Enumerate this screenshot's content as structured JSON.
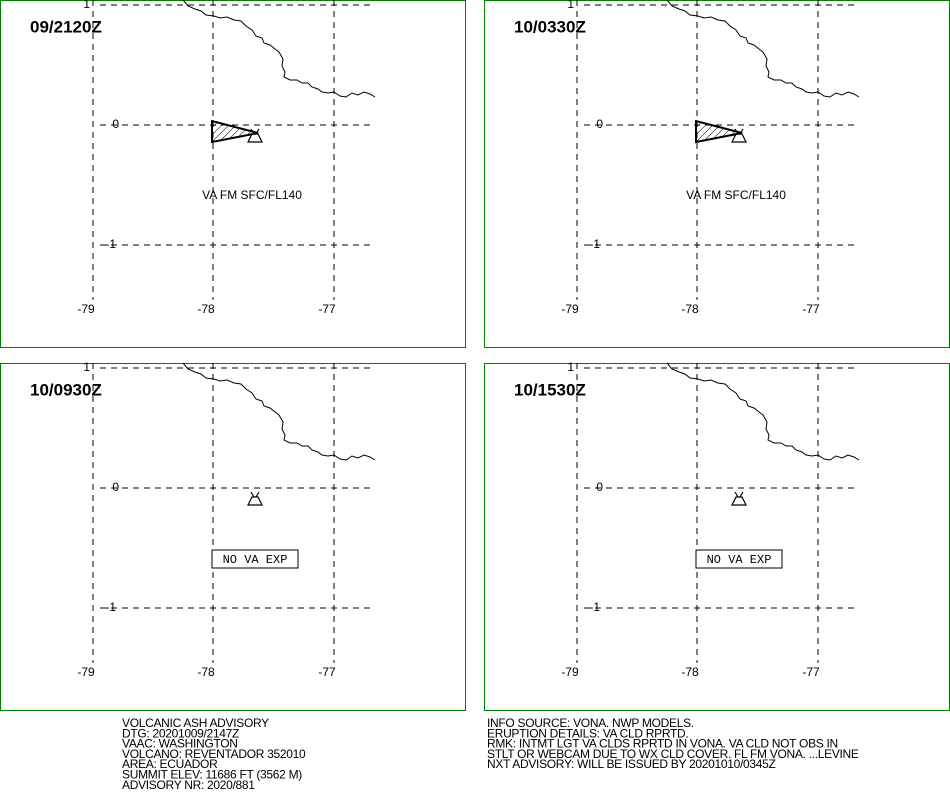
{
  "panels": [
    {
      "time": "09/2120Z",
      "annotation": "VA FM SFC/FL140"
    },
    {
      "time": "10/0330Z",
      "annotation": "VA FM SFC/FL140"
    },
    {
      "time": "10/0930Z",
      "annotation": "NO VA EXP"
    },
    {
      "time": "10/1530Z",
      "annotation": "NO VA EXP"
    }
  ],
  "lat_labels": [
    "1",
    "0",
    "-1"
  ],
  "lon_labels": [
    "-79",
    "-78",
    "-77"
  ],
  "info_left": [
    "VOLCANIC ASH ADVISORY",
    "DTG: 20201009/2147Z",
    "VAAC: WASHINGTON",
    "VOLCANO: REVENTADOR 352010",
    "AREA: ECUADOR",
    "SUMMIT ELEV: 11686 FT (3562 M)",
    "ADVISORY NR: 2020/881"
  ],
  "info_right": [
    "INFO SOURCE: VONA. NWP MODELS.",
    "ERUPTION DETAILS: VA CLD RPRTD.",
    "RMK: INTMT LGT VA CLDS RPRTD IN VONA. VA CLD NOT OBS IN",
    "STLT OR WEBCAM DUE TO WX CLD COVER. FL FM VONA. ...LEVINE",
    "NXT ADVISORY: WILL BE ISSUED BY 20201010/0345Z"
  ]
}
